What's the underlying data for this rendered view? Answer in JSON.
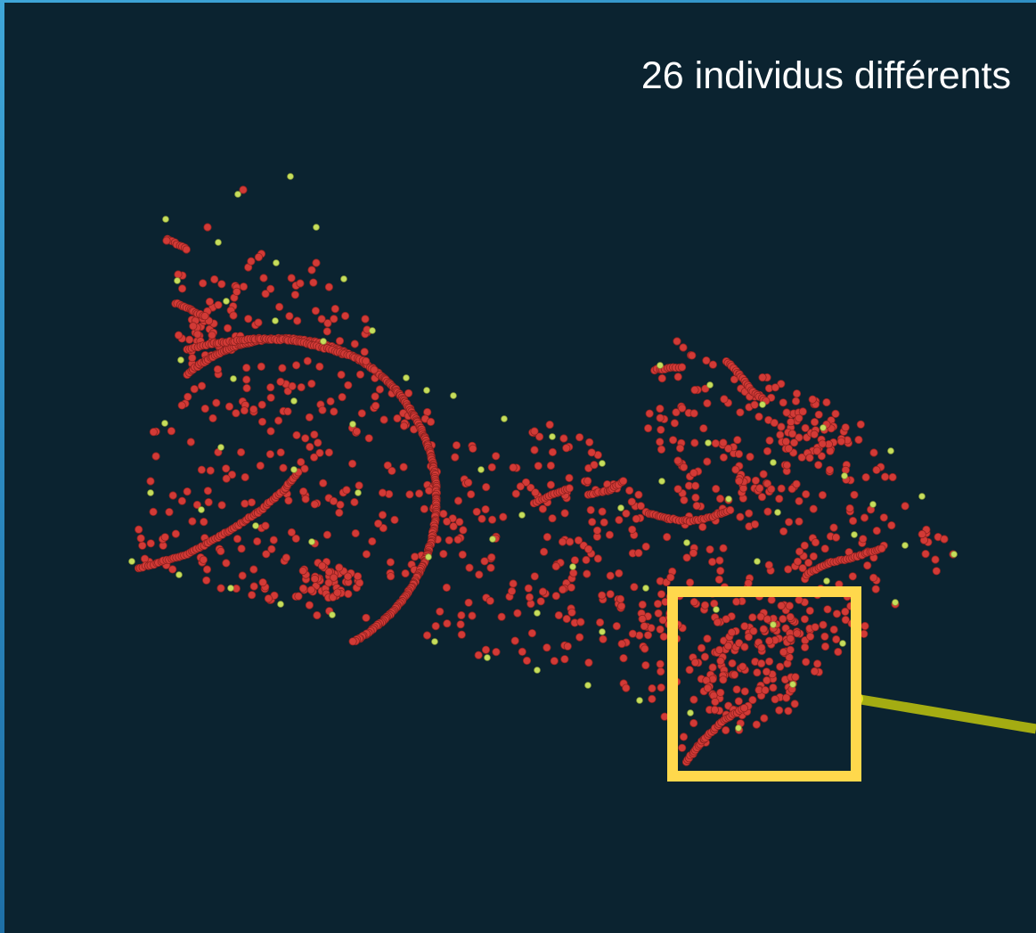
{
  "slide": {
    "headline": "26 individus différents"
  },
  "colors": {
    "background": "#0b2330",
    "frame_accent": "#3fa6d8",
    "point_primary": "#d23a36",
    "point_secondary": "#c6de5c",
    "highlight_box": "#ffd84c",
    "connector": "#a4ac12"
  },
  "visualization": {
    "kind": "point-cloud",
    "marker_colors": [
      "point_primary",
      "point_secondary"
    ],
    "zoom_box": true,
    "connector_line": true
  }
}
